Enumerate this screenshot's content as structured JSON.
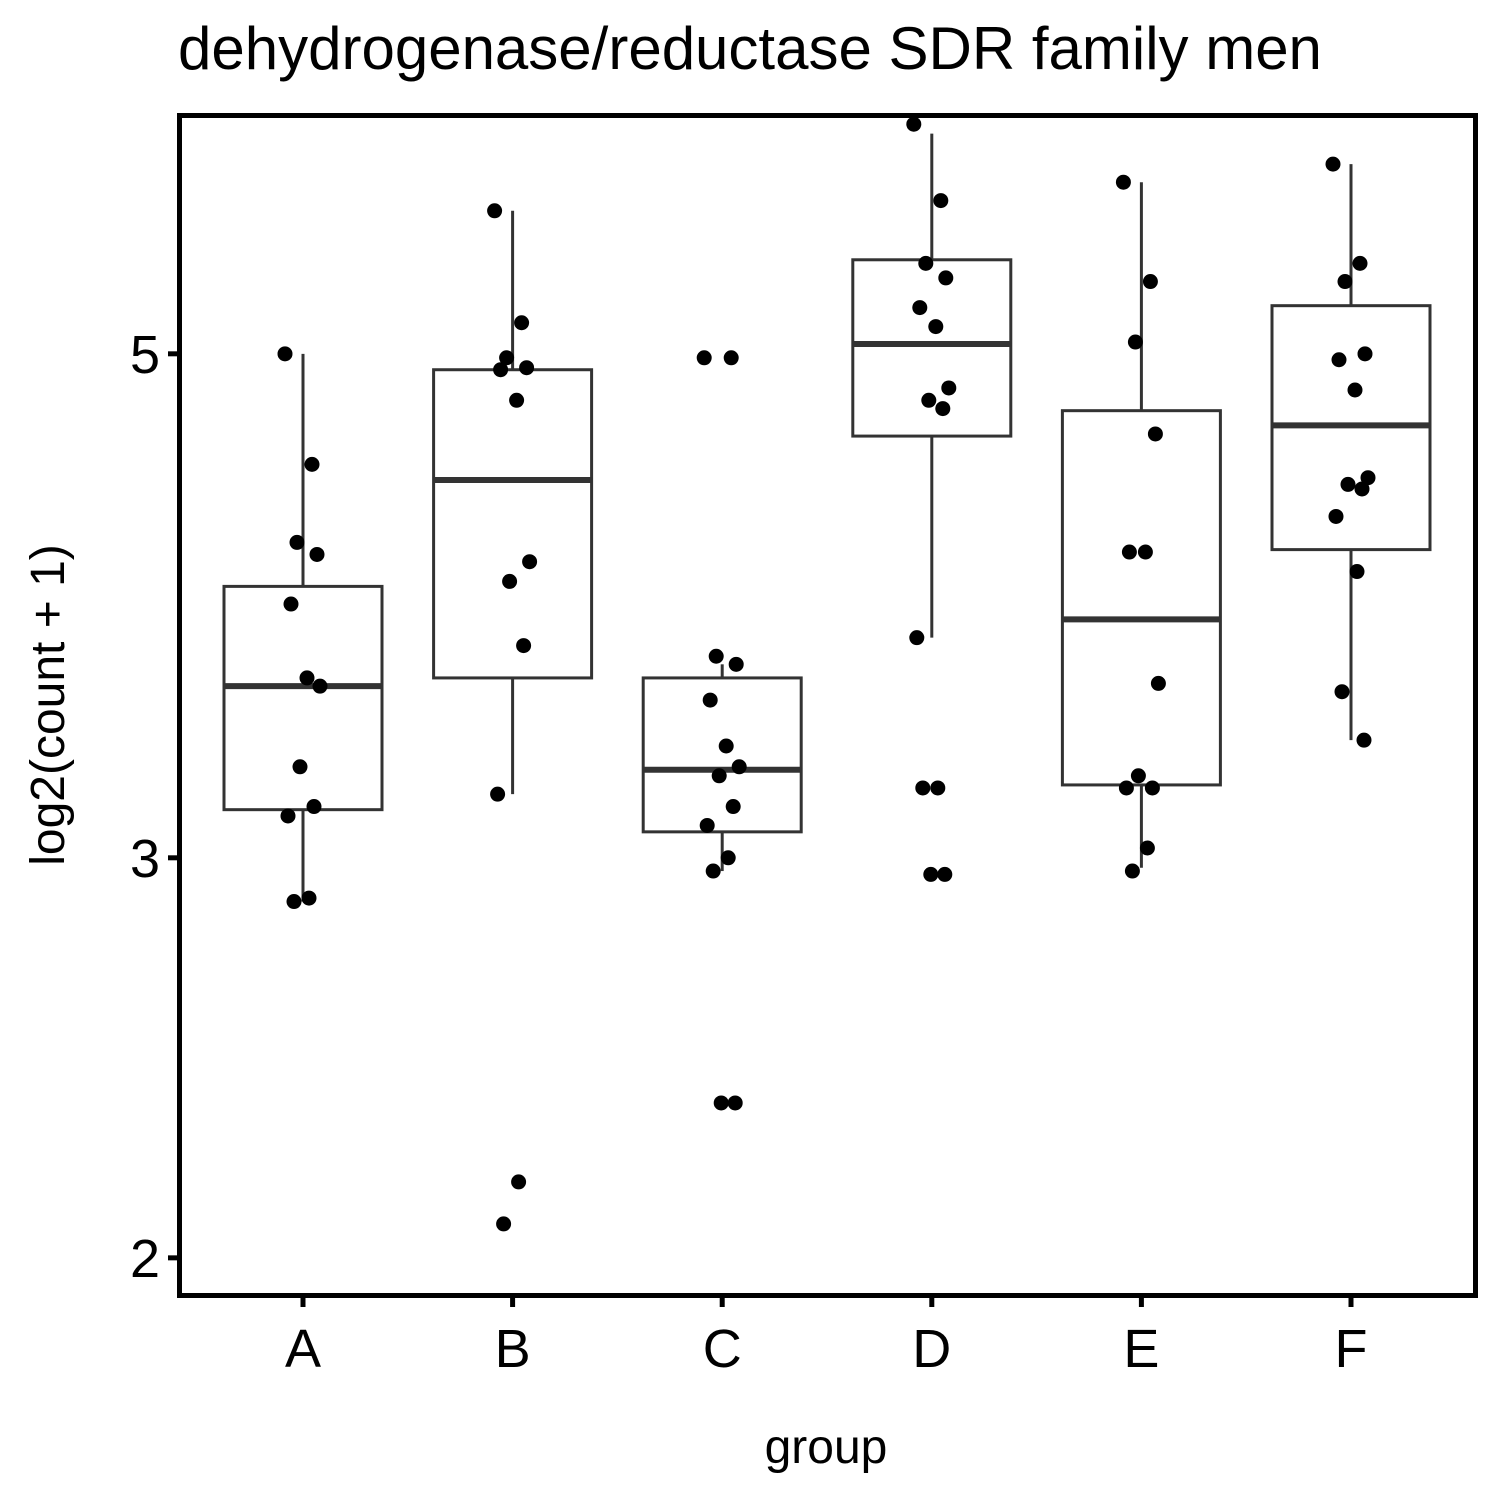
{
  "chart_data": {
    "type": "boxplot",
    "title": "dehydrogenase/reductase SDR family men",
    "xlabel": "group",
    "ylabel": "log2(count + 1)",
    "categories": [
      "A",
      "B",
      "C",
      "D",
      "E",
      "F"
    ],
    "yscale": "log",
    "yticks": [
      2,
      3,
      5
    ],
    "ylim": [
      1.93,
      6.35
    ],
    "grid": false,
    "legend": "none",
    "boxes": [
      {
        "group": "A",
        "lower_whisker": 2.87,
        "q1": 3.15,
        "median": 3.57,
        "q3": 3.95,
        "upper_whisker": 5.0
      },
      {
        "group": "B",
        "lower_whisker": 3.2,
        "q1": 3.6,
        "median": 4.4,
        "q3": 4.92,
        "upper_whisker": 5.78
      },
      {
        "group": "C",
        "lower_whisker": 2.96,
        "q1": 3.08,
        "median": 3.28,
        "q3": 3.6,
        "upper_whisker": 3.65
      },
      {
        "group": "D",
        "lower_whisker": 3.75,
        "q1": 4.6,
        "median": 5.05,
        "q3": 5.5,
        "upper_whisker": 6.25
      },
      {
        "group": "E",
        "lower_whisker": 2.97,
        "q1": 3.23,
        "median": 3.82,
        "q3": 4.72,
        "upper_whisker": 5.95
      },
      {
        "group": "F",
        "lower_whisker": 3.38,
        "q1": 4.1,
        "median": 4.65,
        "q3": 5.25,
        "upper_whisker": 6.06
      }
    ],
    "points": [
      {
        "group": "A",
        "values": [
          5.0,
          4.47,
          4.13,
          4.08,
          3.88,
          3.6,
          3.57,
          3.29,
          3.16,
          3.13,
          2.88,
          2.87
        ]
      },
      {
        "group": "B",
        "values": [
          5.78,
          5.16,
          4.98,
          4.93,
          4.92,
          4.77,
          4.05,
          3.97,
          3.72,
          3.2,
          2.16,
          2.07
        ]
      },
      {
        "group": "C",
        "values": [
          4.98,
          4.98,
          3.68,
          3.65,
          3.52,
          3.36,
          3.29,
          3.26,
          3.16,
          3.1,
          3.0,
          2.96,
          2.34,
          2.34
        ]
      },
      {
        "group": "D",
        "values": [
          6.31,
          5.84,
          5.48,
          5.4,
          5.24,
          5.14,
          4.83,
          4.77,
          4.73,
          3.75,
          3.22,
          3.22,
          2.95,
          2.95
        ]
      },
      {
        "group": "E",
        "values": [
          5.95,
          5.38,
          5.06,
          4.61,
          4.09,
          4.09,
          3.58,
          3.26,
          3.22,
          3.22,
          3.03,
          2.96
        ]
      },
      {
        "group": "F",
        "values": [
          6.06,
          5.48,
          5.38,
          5.0,
          4.97,
          4.82,
          4.41,
          4.38,
          4.36,
          4.24,
          4.01,
          3.55,
          3.38
        ]
      }
    ]
  }
}
